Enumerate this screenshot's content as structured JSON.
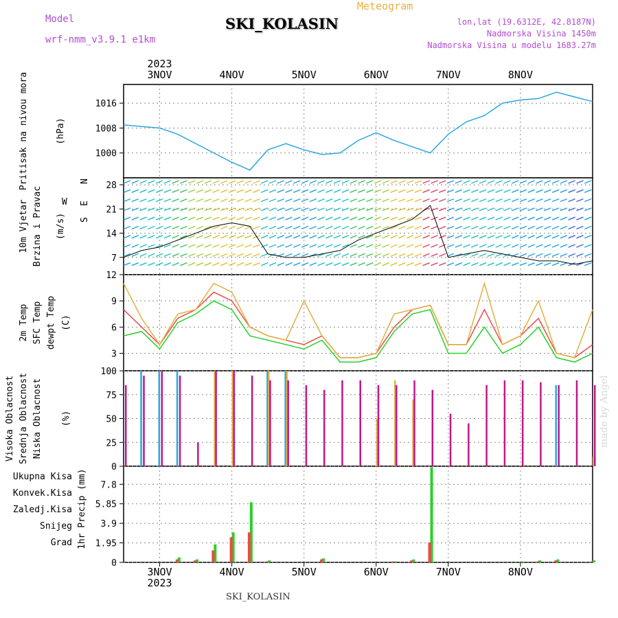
{
  "header": {
    "model_label": "Model",
    "model_name": "wrf-nmm_v3.9.1 e1km",
    "meteogram": "Meteogram",
    "site": "SKI_KOLASIN",
    "lonlat": "lon,lat (19.6312E, 42.8187N)",
    "elev": "Nadmorska Visina 1450m",
    "elev_model": "Nadmorska Visina u modelu 1683.27m"
  },
  "footer": {
    "site": "SKI_KOLASIN",
    "credit": "made by Angel"
  },
  "colors": {
    "pressure": "#2aa6e0",
    "wind_speed": "#000000",
    "temp2m": "#f04848",
    "sfc_temp": "#e0b040",
    "dewpt": "#28d028",
    "high_cloud": "#2aa6e0",
    "mid_cloud": "#e0b040",
    "low_cloud": "#c0168a",
    "total_precip": "#28d028",
    "conv_precip": "#f04848",
    "frozen_precip": "#f08830",
    "snow": "#5050e0",
    "hail": "#30c0c0"
  },
  "chart_data": [
    {
      "type": "line",
      "title": "",
      "ylabel": "Pritisak na nivou mora (hPa)",
      "ylabel_lines": [
        "Pritisak na nivou mora",
        "(hPa)"
      ],
      "yticks": [
        1000,
        1008,
        1016
      ],
      "ylim": [
        992,
        1022
      ],
      "x": [
        0,
        6,
        12,
        18,
        24,
        30,
        36,
        42,
        48,
        54,
        60,
        66,
        72,
        78,
        84,
        90,
        96,
        102,
        108,
        114,
        120,
        126,
        132,
        138,
        144,
        150,
        156
      ],
      "series": [
        {
          "name": "Pritisak",
          "values": [
            1009,
            1008.5,
            1008,
            1006,
            1003,
            1000,
            997,
            994.5,
            1001,
            1003,
            1001,
            999.5,
            1000,
            1004,
            1006.5,
            1004,
            1002,
            1000,
            1006,
            1010,
            1012,
            1016,
            1017,
            1017.5,
            1019.5,
            1018,
            1016.5
          ]
        }
      ]
    },
    {
      "type": "line",
      "ylabel_lines": [
        "10m Vjetar",
        "Brzina i Pravac",
        "(m/s)"
      ],
      "yticks": [
        7,
        14,
        21,
        28
      ],
      "ylim": [
        2,
        30
      ],
      "x": [
        0,
        6,
        12,
        18,
        24,
        30,
        36,
        42,
        48,
        54,
        60,
        66,
        72,
        78,
        84,
        90,
        96,
        102,
        108,
        114,
        120,
        126,
        132,
        138,
        144,
        150,
        156
      ],
      "series": [
        {
          "name": "Brzina",
          "values": [
            7,
            9,
            10,
            12,
            14,
            16,
            17,
            16,
            8,
            7,
            7,
            8,
            9,
            12,
            14,
            16,
            18,
            22,
            7,
            8,
            9,
            8,
            7,
            6,
            6,
            5,
            6
          ]
        }
      ],
      "direction_legend": {
        "n": "N",
        "e": "E",
        "s": "S",
        "w": "W"
      }
    },
    {
      "type": "line",
      "ylabel_lines": [
        "2m Temp",
        "SFC Temp",
        "dewpt Temp",
        "(C)"
      ],
      "yticks": [
        3,
        6,
        9,
        12
      ],
      "ylim": [
        1,
        12
      ],
      "x": [
        0,
        6,
        12,
        18,
        24,
        30,
        36,
        42,
        48,
        54,
        60,
        66,
        72,
        78,
        84,
        90,
        96,
        102,
        108,
        114,
        120,
        126,
        132,
        138,
        144,
        150,
        156
      ],
      "series": [
        {
          "name": "2m Temp",
          "values": [
            8,
            6,
            4,
            7,
            8,
            10,
            9,
            6,
            5,
            4.5,
            4,
            5,
            2.5,
            2.5,
            3,
            6,
            8,
            8.5,
            4,
            4,
            8,
            4,
            5,
            7,
            3,
            2.5,
            4
          ]
        },
        {
          "name": "SFC Temp",
          "values": [
            11,
            7,
            4,
            7.5,
            8,
            11,
            10,
            6,
            5,
            4.5,
            9,
            5,
            2.5,
            2.5,
            3,
            7.5,
            8,
            8.5,
            4,
            4,
            11,
            4,
            5,
            9,
            3,
            2.5,
            8
          ]
        },
        {
          "name": "dewpt Temp",
          "values": [
            5,
            5.5,
            3.5,
            6.5,
            7.5,
            9,
            8,
            5,
            4.5,
            4,
            3.5,
            4.5,
            2,
            2,
            2.5,
            5.5,
            7.5,
            8,
            3,
            3,
            6,
            3,
            4,
            6,
            2.5,
            2,
            3
          ]
        }
      ]
    },
    {
      "type": "bar",
      "ylabel_lines": [
        "Visoka Oblacnost",
        "Srednja Oblacnost",
        "Niska Oblacnost",
        "(%)"
      ],
      "yticks": [
        0,
        25,
        50,
        75,
        100
      ],
      "ylim": [
        0,
        100
      ],
      "x": [
        0,
        6,
        12,
        18,
        24,
        30,
        36,
        42,
        48,
        54,
        60,
        66,
        72,
        78,
        84,
        90,
        96,
        102,
        108,
        114,
        120,
        126,
        132,
        138,
        144,
        150,
        156
      ],
      "series": [
        {
          "name": "Visoka Oblacnost",
          "values": [
            0,
            100,
            100,
            100,
            0,
            0,
            0,
            0,
            100,
            100,
            0,
            0,
            0,
            0,
            0,
            0,
            0,
            0,
            0,
            0,
            0,
            0,
            0,
            0,
            85,
            0,
            0
          ]
        },
        {
          "name": "Srednja Oblacnost",
          "values": [
            0,
            0,
            0,
            0,
            0,
            100,
            100,
            0,
            100,
            100,
            0,
            0,
            0,
            0,
            50,
            90,
            70,
            0,
            0,
            0,
            0,
            0,
            0,
            0,
            0,
            0,
            10
          ]
        },
        {
          "name": "Niska Oblacnost",
          "values": [
            85,
            95,
            100,
            95,
            25,
            100,
            100,
            95,
            90,
            90,
            85,
            80,
            90,
            90,
            85,
            85,
            90,
            80,
            55,
            45,
            85,
            90,
            90,
            88,
            85,
            90,
            85
          ]
        }
      ]
    },
    {
      "type": "bar",
      "ylabel_lines": [
        "1hr Precip (mm)"
      ],
      "yticks": [
        0,
        1.95,
        3.9,
        5.85,
        7.8
      ],
      "ylim": [
        0,
        9.6
      ],
      "legend": [
        "Ukupna Kisa",
        "Konvek.Kisa",
        "Zaledj.Kisa",
        "Snijeg",
        "Grad"
      ],
      "x": [
        0,
        6,
        12,
        18,
        24,
        30,
        36,
        42,
        48,
        54,
        60,
        66,
        72,
        78,
        84,
        90,
        96,
        102,
        108,
        114,
        120,
        126,
        132,
        138,
        144,
        150,
        156
      ],
      "series": [
        {
          "name": "Ukupna Kisa",
          "values": [
            0,
            0,
            0,
            0.5,
            0.3,
            1.8,
            3,
            6,
            0.2,
            0,
            0,
            0.4,
            0,
            0,
            0,
            0.1,
            0.3,
            9.5,
            0,
            0,
            0,
            0,
            0.1,
            0.2,
            0.3,
            0,
            0.2
          ]
        },
        {
          "name": "Konvek.Kisa",
          "values": [
            0,
            0,
            0,
            0.3,
            0.2,
            1.2,
            2.5,
            3,
            0.1,
            0,
            0,
            0.3,
            0,
            0,
            0,
            0.1,
            0.2,
            2,
            0,
            0,
            0,
            0,
            0,
            0.1,
            0.2,
            0,
            0.1
          ]
        }
      ]
    }
  ],
  "time_axis": {
    "year": "2023",
    "dates": [
      "3NOV",
      "4NOV",
      "5NOV",
      "6NOV",
      "7NOV",
      "8NOV"
    ],
    "date_hours": [
      12,
      36,
      60,
      84,
      108,
      132
    ],
    "range_hours": [
      0,
      156
    ]
  }
}
